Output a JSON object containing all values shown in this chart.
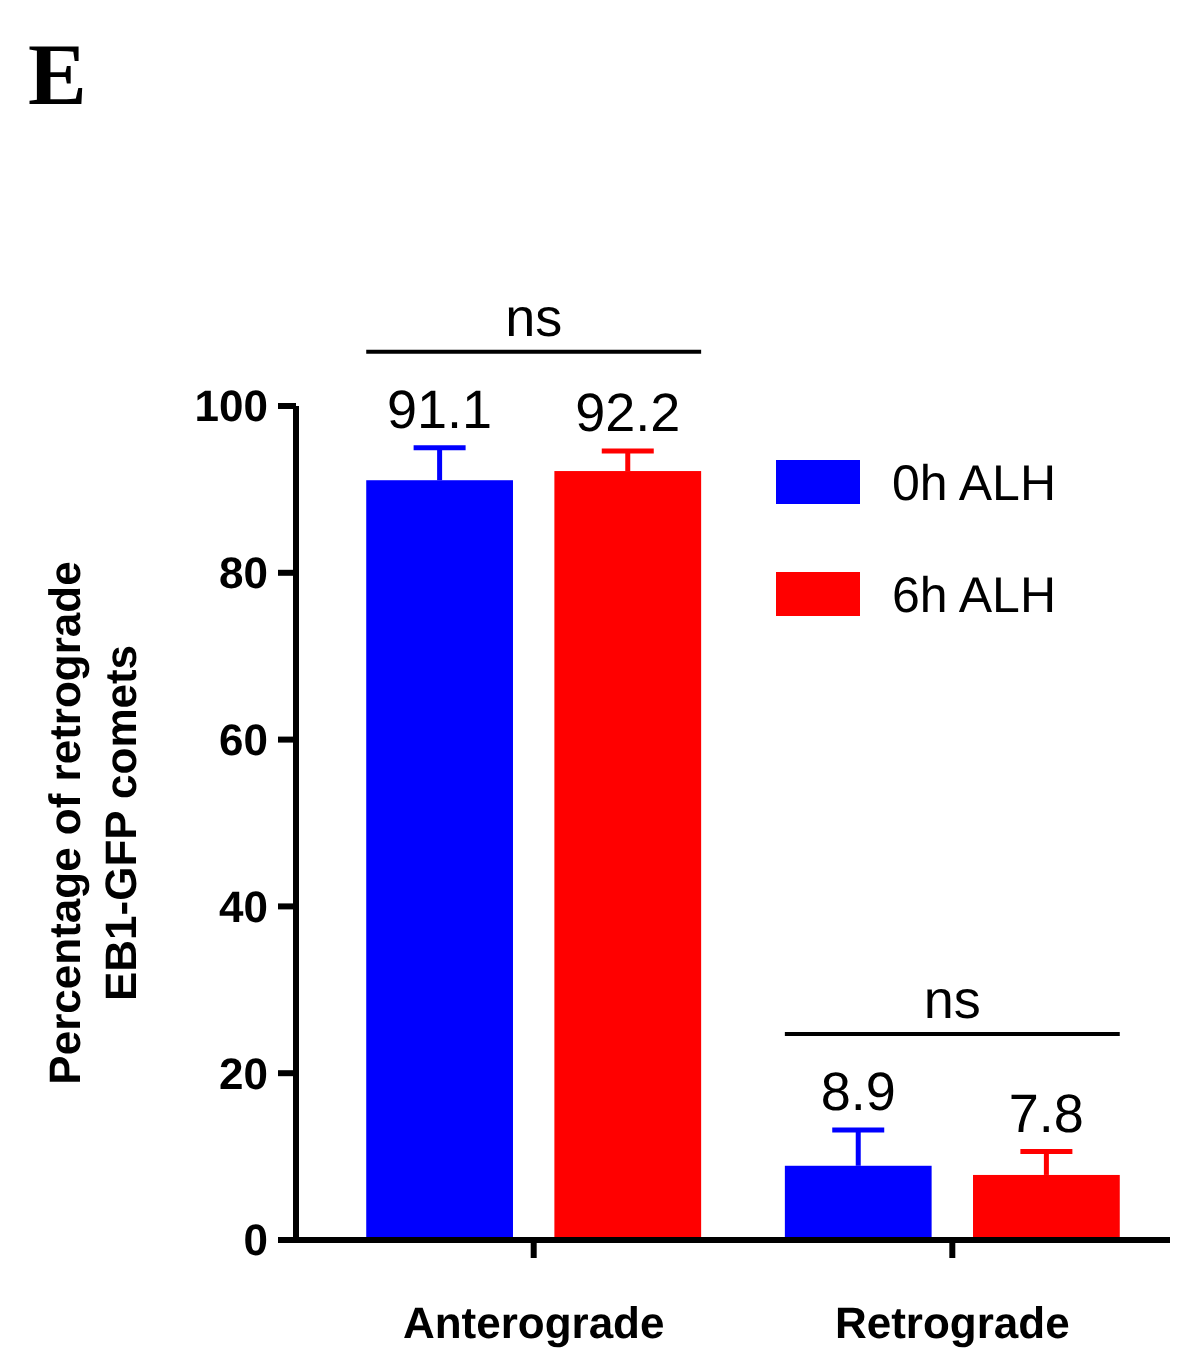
{
  "chart_data": {
    "type": "bar",
    "title": "E",
    "ylabel": "Percentage of retrograde\nEB1-GFP comets",
    "categories": [
      "Anterograde",
      "Retrograde"
    ],
    "series": [
      {
        "name": "0h ALH",
        "color": "#0000ff",
        "values": [
          91.1,
          8.9
        ],
        "errors": [
          [
            91.1,
            95.0
          ],
          [
            8.9,
            13.2
          ]
        ]
      },
      {
        "name": "6h ALH",
        "color": "#ff0000",
        "values": [
          92.2,
          7.8
        ],
        "errors": [
          [
            92.2,
            94.6
          ],
          [
            7.8,
            10.6
          ]
        ]
      }
    ],
    "ylim": [
      0,
      100
    ],
    "yticks": [
      0,
      20,
      40,
      60,
      80,
      100
    ],
    "data_labels": true,
    "legend": "top right",
    "grid": false,
    "annotations": [
      "ns",
      "ns"
    ]
  }
}
